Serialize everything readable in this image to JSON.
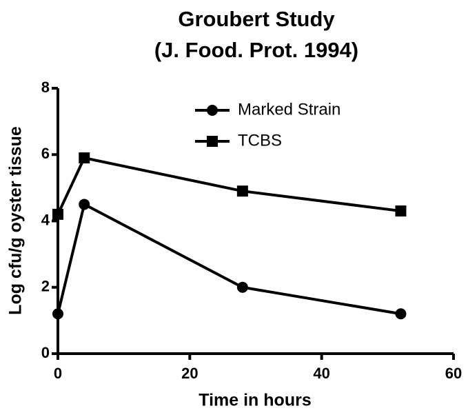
{
  "chart_data": {
    "type": "line",
    "title": "Groubert Study",
    "subtitle": "(J. Food. Prot. 1994)",
    "x_label": "Time in hours",
    "y_label": "Log cfu/g oyster tissue",
    "x": [
      0,
      4,
      28,
      52
    ],
    "series": [
      {
        "name": "Marked Strain",
        "color": "#000000",
        "marker": "circle",
        "values": [
          1.2,
          4.5,
          2.0,
          1.2
        ]
      },
      {
        "name": "TCBS",
        "color": "#000000",
        "marker": "square",
        "values": [
          4.2,
          5.9,
          4.9,
          4.3
        ]
      }
    ],
    "xlim": [
      0,
      60
    ],
    "xticks": [
      0,
      20,
      40,
      60
    ],
    "ylim": [
      0,
      8
    ],
    "yticks": [
      0,
      2,
      4,
      6,
      8
    ],
    "grid": false,
    "legend": "top"
  }
}
